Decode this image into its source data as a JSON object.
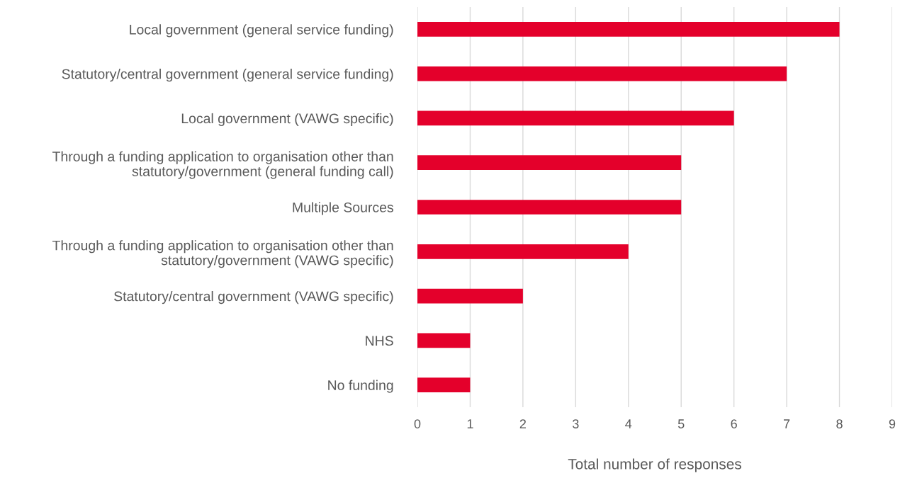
{
  "chart_data": {
    "type": "bar",
    "orientation": "horizontal",
    "xlabel": "Total number of responses",
    "categories": [
      "Local government (general service funding)",
      "Statutory/central government (general service funding)",
      "Local government (VAWG specific)",
      "Through a funding application to organisation other than\nstatutory/government (general funding call)",
      "Multiple Sources",
      "Through a funding application to organisation other than\nstatutory/government (VAWG specific)",
      "Statutory/central government (VAWG specific)",
      "NHS",
      "No funding"
    ],
    "values": [
      8,
      7,
      6,
      5,
      5,
      4,
      2,
      1,
      1
    ],
    "color": "#e4002b",
    "xlim": [
      0,
      9
    ],
    "xticks": [
      0,
      1,
      2,
      3,
      4,
      5,
      6,
      7,
      8,
      9
    ],
    "grid": "x",
    "legend": false
  }
}
